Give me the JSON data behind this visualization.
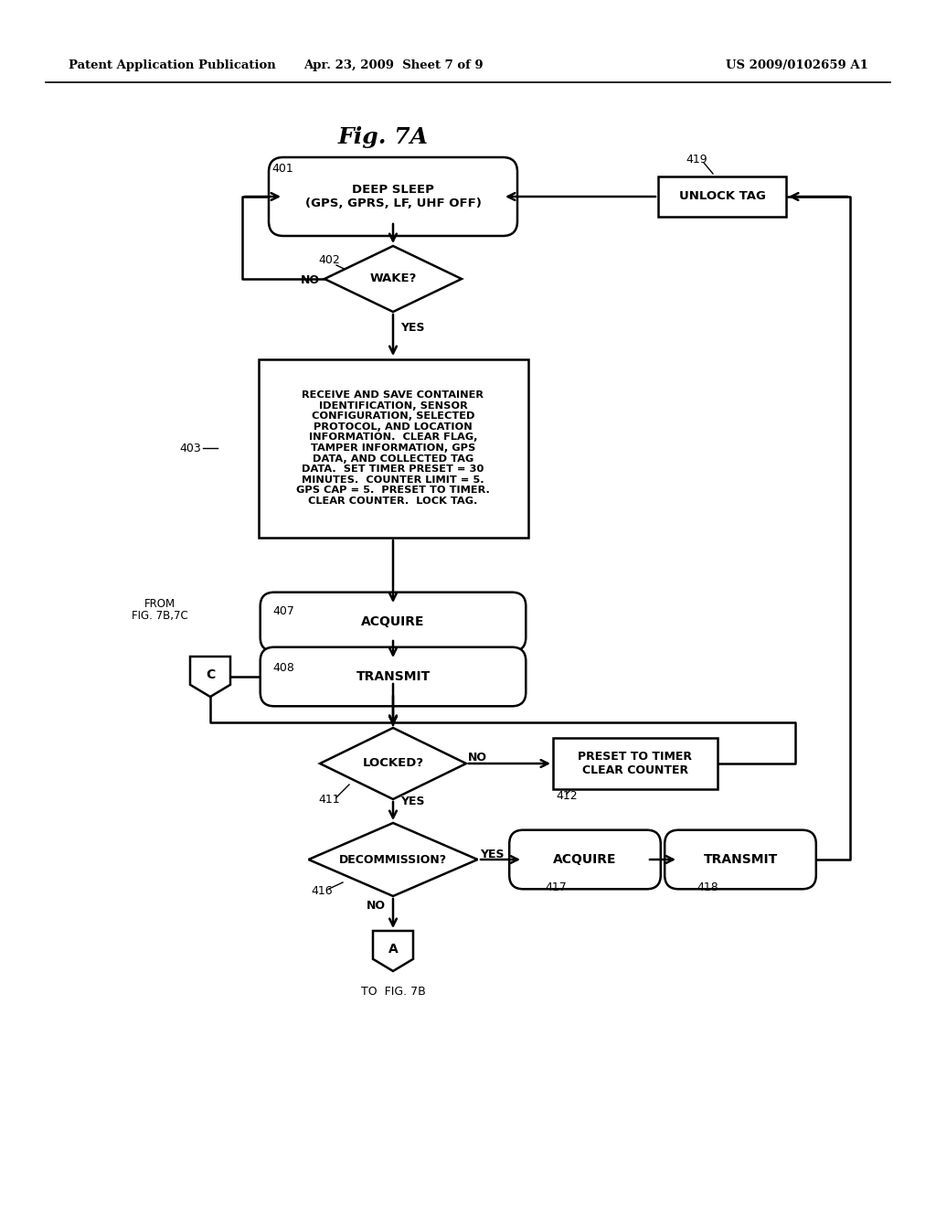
{
  "bg_color": "#ffffff",
  "header_left": "Patent Application Publication",
  "header_mid": "Apr. 23, 2009  Sheet 7 of 9",
  "header_right": "US 2009/0102659 A1",
  "fig_title": "Fig. 7A"
}
